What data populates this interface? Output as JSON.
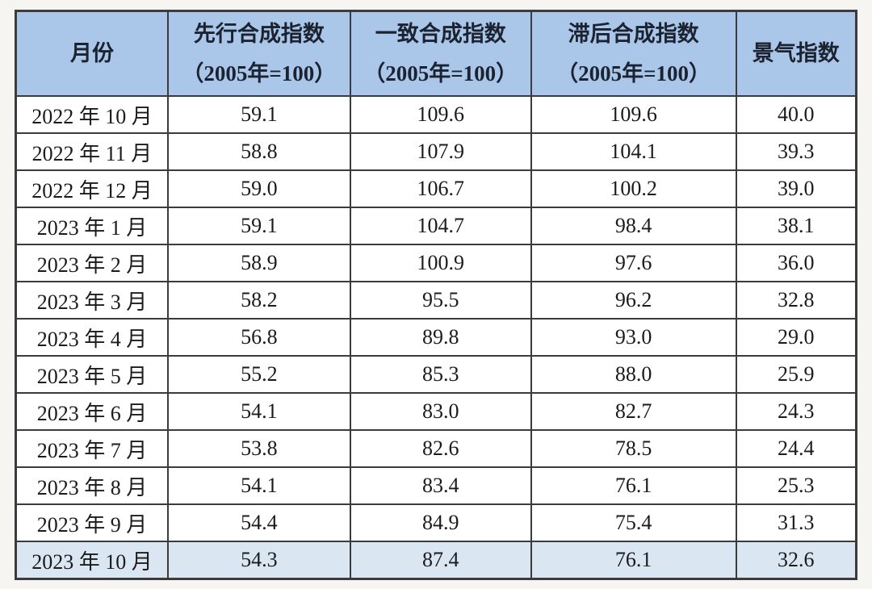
{
  "colors": {
    "header_bg": "#aac6e8",
    "highlight_row_bg": "#dbe6f3",
    "border": "#3b3b3b",
    "text": "#1b1b1b",
    "page_bg": "#f7f5f2"
  },
  "chart_data": {
    "type": "table",
    "title": "",
    "columns": [
      {
        "label": "月份",
        "sub": ""
      },
      {
        "label": "先行合成指数",
        "sub": "（2005年=100）"
      },
      {
        "label": "一致合成指数",
        "sub": "（2005年=100）"
      },
      {
        "label": "滞后合成指数",
        "sub": "（2005年=100）"
      },
      {
        "label": "景气指数",
        "sub": ""
      }
    ],
    "rows": [
      {
        "cells": [
          "2022 年 10 月",
          "59.1",
          "109.6",
          "109.6",
          "40.0"
        ]
      },
      {
        "cells": [
          "2022 年 11 月",
          "58.8",
          "107.9",
          "104.1",
          "39.3"
        ]
      },
      {
        "cells": [
          "2022 年 12 月",
          "59.0",
          "106.7",
          "100.2",
          "39.0"
        ]
      },
      {
        "cells": [
          "2023 年 1 月",
          "59.1",
          "104.7",
          "98.4",
          "38.1"
        ]
      },
      {
        "cells": [
          "2023 年 2 月",
          "58.9",
          "100.9",
          "97.6",
          "36.0"
        ]
      },
      {
        "cells": [
          "2023 年 3 月",
          "58.2",
          "95.5",
          "96.2",
          "32.8"
        ]
      },
      {
        "cells": [
          "2023 年 4 月",
          "56.8",
          "89.8",
          "93.0",
          "29.0"
        ]
      },
      {
        "cells": [
          "2023 年 5 月",
          "55.2",
          "85.3",
          "88.0",
          "25.9"
        ]
      },
      {
        "cells": [
          "2023 年 6 月",
          "54.1",
          "83.0",
          "82.7",
          "24.3"
        ]
      },
      {
        "cells": [
          "2023 年 7 月",
          "53.8",
          "82.6",
          "78.5",
          "24.4"
        ]
      },
      {
        "cells": [
          "2023 年 8 月",
          "54.1",
          "83.4",
          "76.1",
          "25.3"
        ]
      },
      {
        "cells": [
          "2023 年 9 月",
          "54.4",
          "84.9",
          "75.4",
          "31.3"
        ]
      },
      {
        "cells": [
          "2023 年 10 月",
          "54.3",
          "87.4",
          "76.1",
          "32.6"
        ]
      }
    ],
    "highlighted_row_index": 12,
    "layout": {
      "column_width_percents": [
        18.1,
        21.7,
        21.5,
        24.4,
        14.3
      ]
    }
  }
}
